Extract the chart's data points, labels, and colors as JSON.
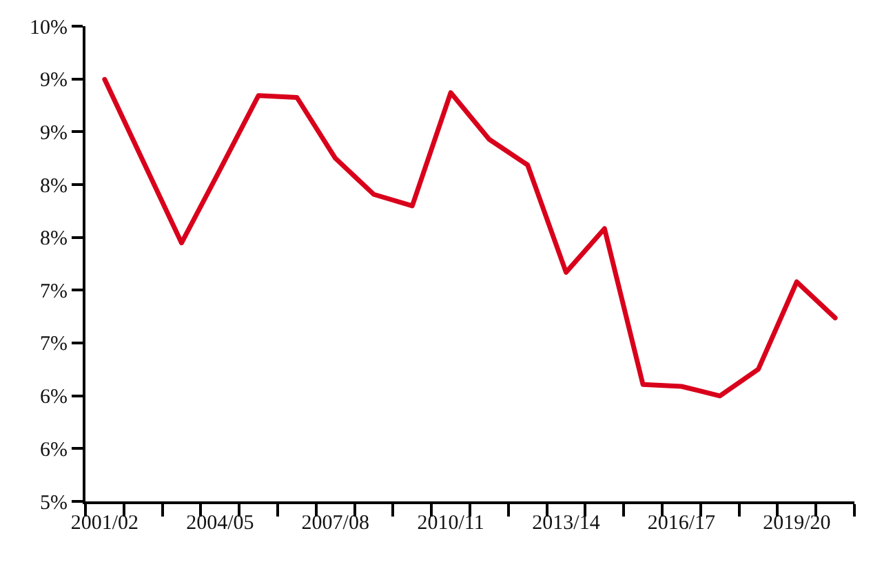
{
  "chart_data": {
    "type": "line",
    "categories": [
      "2001/02",
      null,
      null,
      "2004/05",
      null,
      null,
      "2007/08",
      null,
      null,
      "2010/11",
      null,
      null,
      "2013/14",
      null,
      null,
      "2016/17",
      null,
      null,
      "2019/20",
      null
    ],
    "series": [
      {
        "color": "#d9001b",
        "values": [
          9.44,
          8.58,
          7.72,
          8.49,
          9.27,
          9.25,
          8.61,
          8.23,
          8.11,
          9.3,
          8.81,
          8.54,
          7.41,
          7.87,
          6.23,
          6.21,
          6.11,
          6.39,
          7.31,
          6.93
        ]
      }
    ],
    "ylim": [
      5,
      10
    ],
    "yticks": [
      {
        "value": 5,
        "label": "5%"
      },
      {
        "value": 5.556,
        "label": "6%"
      },
      {
        "value": 6.111,
        "label": "6%"
      },
      {
        "value": 6.667,
        "label": "7%"
      },
      {
        "value": 7.222,
        "label": "7%"
      },
      {
        "value": 7.778,
        "label": "8%"
      },
      {
        "value": 8.333,
        "label": "8%"
      },
      {
        "value": 8.889,
        "label": "9%"
      },
      {
        "value": 9.444,
        "label": "9%"
      },
      {
        "value": 10,
        "label": "10%"
      }
    ],
    "marker": "none",
    "line_style": "solid"
  }
}
